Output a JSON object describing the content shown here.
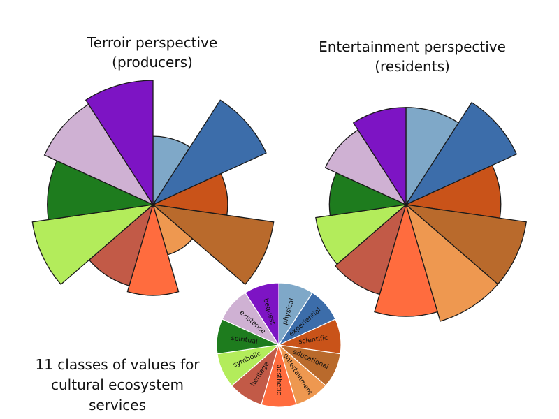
{
  "chart_data": [
    {
      "type": "polar-area",
      "title_lines": [
        "Terroir perspective",
        "(producers)"
      ],
      "categories": [
        "physical",
        "experiential",
        "scientific",
        "educational",
        "entertainment",
        "aesthetic",
        "heritage",
        "symbolic",
        "spiritual",
        "existence",
        "bequest"
      ],
      "values": [
        0.55,
        1.0,
        0.6,
        0.98,
        0.42,
        0.73,
        0.68,
        0.98,
        0.85,
        0.96,
        1.0
      ],
      "colors": [
        "#7FA8C8",
        "#3C6DAA",
        "#C95319",
        "#B96A2C",
        "#EE9850",
        "#FF6C3E",
        "#C25A47",
        "#B3EC5B",
        "#1E7C1E",
        "#CFB1D3",
        "#7D14C4"
      ]
    },
    {
      "type": "polar-area",
      "title_lines": [
        "Entertainment perspective",
        "(residents)"
      ],
      "categories": [
        "physical",
        "experiential",
        "scientific",
        "educational",
        "entertainment",
        "aesthetic",
        "heritage",
        "symbolic",
        "spiritual",
        "existence",
        "bequest"
      ],
      "values": [
        0.8,
        1.0,
        0.78,
        1.0,
        1.0,
        0.92,
        0.77,
        0.75,
        0.63,
        0.73,
        0.8
      ],
      "colors": [
        "#7FA8C8",
        "#3C6DAA",
        "#C95319",
        "#B96A2C",
        "#EE9850",
        "#FF6C3E",
        "#C25A47",
        "#B3EC5B",
        "#1E7C1E",
        "#CFB1D3",
        "#7D14C4"
      ]
    },
    {
      "type": "pie",
      "categories": [
        "physical",
        "experiential",
        "scientific",
        "educational",
        "entertainment",
        "aesthetic",
        "heritage",
        "symbolic",
        "spiritual",
        "existence",
        "bequest"
      ],
      "values": [
        1,
        1,
        1,
        1,
        1,
        1,
        1,
        1,
        1,
        1,
        1
      ],
      "colors": [
        "#7FA8C8",
        "#3C6DAA",
        "#C95319",
        "#B96A2C",
        "#EE9850",
        "#FF6C3E",
        "#C25A47",
        "#B3EC5B",
        "#1E7C1E",
        "#CFB1D3",
        "#7D14C4"
      ]
    }
  ],
  "legend_caption_lines": [
    "11 classes of values for",
    "cultural ecosystem",
    "services"
  ]
}
